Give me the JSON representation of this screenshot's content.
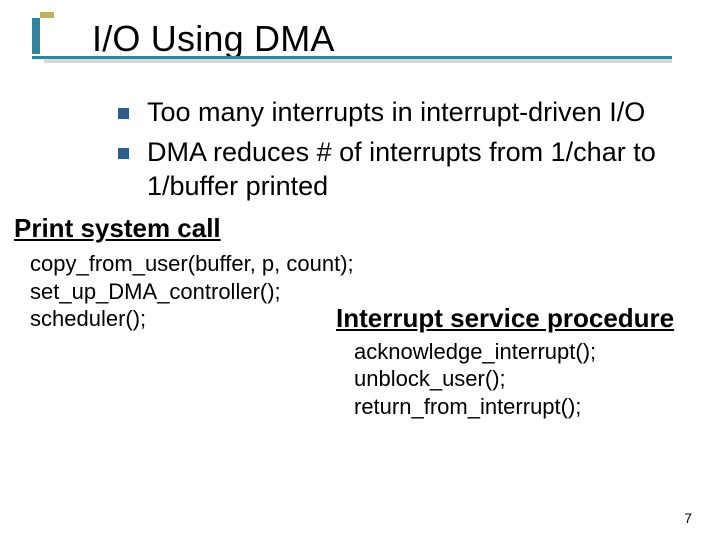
{
  "accent": {
    "primary": "#31859c",
    "secondary": "#bfb160",
    "bullet": "#2e5c8a",
    "underline": "#31859c"
  },
  "title": "I/O Using DMA",
  "bullets": [
    "Too many interrupts in interrupt-driven I/O",
    "DMA reduces # of interrupts from 1/char to 1/buffer printed"
  ],
  "section1": {
    "heading": "Print system call",
    "code": [
      "copy_from_user(buffer, p, count);",
      "set_up_DMA_controller();",
      "scheduler();"
    ]
  },
  "section2": {
    "heading": "Interrupt service procedure",
    "code": [
      "acknowledge_interrupt();",
      "unblock_user();",
      "return_from_interrupt();"
    ]
  },
  "page_number": "7"
}
